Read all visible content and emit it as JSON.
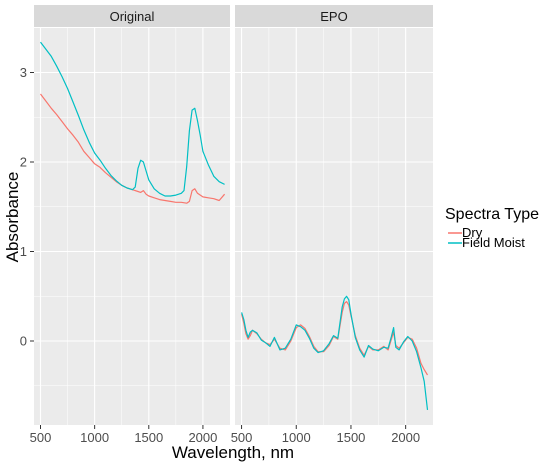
{
  "chart_data": {
    "type": "line",
    "xlabel": "Wavelength, nm",
    "ylabel": "Absorbance",
    "xlim": [
      440,
      2250
    ],
    "ylim": [
      -0.8,
      3.55
    ],
    "x_ticks": [
      500,
      1000,
      1500,
      2000
    ],
    "y_ticks": [
      0,
      1,
      2,
      3
    ],
    "grid": true,
    "legend": {
      "title": "Spectra Type",
      "position": "right",
      "entries": [
        "Dry",
        "Field Moist"
      ]
    },
    "colors": {
      "Dry": "#F8766D",
      "Field Moist": "#00BFC4",
      "panel_bg": "#EBEBEB",
      "strip_bg": "#D9D9D9",
      "grid": "#FFFFFF"
    },
    "facets": [
      {
        "label": "Original",
        "series": [
          {
            "name": "Dry",
            "x": [
              500,
              550,
              600,
              650,
              700,
              750,
              800,
              850,
              900,
              950,
              1000,
              1050,
              1100,
              1150,
              1200,
              1250,
              1300,
              1350,
              1400,
              1425,
              1450,
              1475,
              1500,
              1550,
              1600,
              1650,
              1700,
              1750,
              1800,
              1850,
              1875,
              1900,
              1925,
              1950,
              2000,
              2050,
              2100,
              2150,
              2200
            ],
            "y": [
              2.76,
              2.68,
              2.6,
              2.53,
              2.45,
              2.37,
              2.3,
              2.22,
              2.12,
              2.05,
              1.98,
              1.94,
              1.88,
              1.83,
              1.78,
              1.74,
              1.71,
              1.69,
              1.67,
              1.66,
              1.68,
              1.64,
              1.62,
              1.6,
              1.58,
              1.57,
              1.56,
              1.55,
              1.55,
              1.54,
              1.56,
              1.68,
              1.7,
              1.65,
              1.61,
              1.6,
              1.59,
              1.57,
              1.64
            ]
          },
          {
            "name": "Field Moist",
            "x": [
              500,
              550,
              600,
              650,
              700,
              750,
              800,
              850,
              900,
              950,
              1000,
              1050,
              1100,
              1150,
              1200,
              1250,
              1300,
              1350,
              1375,
              1400,
              1425,
              1450,
              1475,
              1500,
              1550,
              1600,
              1650,
              1700,
              1750,
              1800,
              1825,
              1850,
              1875,
              1900,
              1925,
              1950,
              1975,
              2000,
              2050,
              2100,
              2150,
              2200
            ],
            "y": [
              3.34,
              3.26,
              3.18,
              3.07,
              2.95,
              2.82,
              2.67,
              2.52,
              2.36,
              2.22,
              2.1,
              2.02,
              1.93,
              1.85,
              1.79,
              1.74,
              1.71,
              1.69,
              1.72,
              1.93,
              2.02,
              2.0,
              1.9,
              1.8,
              1.7,
              1.65,
              1.62,
              1.62,
              1.63,
              1.65,
              1.68,
              1.95,
              2.35,
              2.58,
              2.6,
              2.46,
              2.3,
              2.12,
              1.97,
              1.84,
              1.78,
              1.75
            ]
          }
        ]
      },
      {
        "label": "EPO",
        "series": [
          {
            "name": "Dry",
            "x": [
              500,
              520,
              540,
              560,
              580,
              600,
              640,
              680,
              720,
              760,
              800,
              850,
              900,
              950,
              1000,
              1040,
              1080,
              1120,
              1160,
              1200,
              1250,
              1300,
              1340,
              1380,
              1420,
              1440,
              1460,
              1480,
              1500,
              1540,
              1580,
              1620,
              1660,
              1700,
              1750,
              1800,
              1840,
              1870,
              1890,
              1910,
              1940,
              1980,
              2020,
              2060,
              2100,
              2140,
              2170,
              2200
            ],
            "y": [
              0.3,
              0.2,
              0.08,
              0.02,
              0.06,
              0.12,
              0.08,
              0.02,
              -0.02,
              -0.04,
              0.02,
              -0.08,
              -0.1,
              0.0,
              0.15,
              0.18,
              0.14,
              0.05,
              -0.06,
              -0.12,
              -0.12,
              -0.05,
              0.05,
              0.02,
              0.32,
              0.42,
              0.44,
              0.4,
              0.28,
              0.06,
              -0.08,
              -0.16,
              -0.06,
              -0.1,
              -0.1,
              -0.06,
              -0.1,
              0.02,
              0.1,
              -0.05,
              -0.08,
              -0.02,
              0.04,
              0.02,
              -0.08,
              -0.25,
              -0.32,
              -0.38
            ]
          },
          {
            "name": "Field Moist",
            "x": [
              500,
              520,
              540,
              560,
              580,
              600,
              640,
              680,
              720,
              760,
              800,
              850,
              900,
              950,
              1000,
              1040,
              1080,
              1120,
              1160,
              1200,
              1250,
              1300,
              1340,
              1380,
              1420,
              1440,
              1460,
              1480,
              1500,
              1540,
              1580,
              1620,
              1660,
              1700,
              1750,
              1800,
              1840,
              1870,
              1890,
              1910,
              1940,
              1980,
              2020,
              2060,
              2100,
              2140,
              2170,
              2200
            ],
            "y": [
              0.32,
              0.24,
              0.12,
              0.04,
              0.1,
              0.12,
              0.09,
              0.01,
              -0.02,
              -0.06,
              0.04,
              -0.1,
              -0.08,
              0.02,
              0.18,
              0.16,
              0.12,
              0.03,
              -0.08,
              -0.13,
              -0.11,
              -0.03,
              0.06,
              0.03,
              0.38,
              0.47,
              0.5,
              0.46,
              0.3,
              0.04,
              -0.1,
              -0.18,
              -0.05,
              -0.09,
              -0.11,
              -0.07,
              -0.08,
              0.05,
              0.15,
              -0.07,
              -0.1,
              -0.01,
              0.05,
              0.0,
              -0.12,
              -0.3,
              -0.45,
              -0.77
            ]
          }
        ]
      }
    ]
  }
}
